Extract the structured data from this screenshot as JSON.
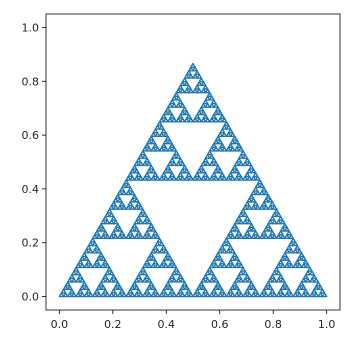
{
  "chart_data": {
    "type": "scatter",
    "title": "",
    "xlabel": "",
    "ylabel": "",
    "xlim": [
      -0.05,
      1.05
    ],
    "ylim": [
      -0.05,
      1.05
    ],
    "grid": false,
    "legend": "none",
    "series": [
      {
        "kind": "sierpinski-triangle",
        "vertices": [
          [
            0.0,
            0.0
          ],
          [
            1.0,
            0.0
          ],
          [
            0.5,
            0.866
          ]
        ],
        "depth": 6,
        "color": "#1f77b4"
      }
    ],
    "x_ticks": [
      {
        "value": 0.0,
        "label": "0.0"
      },
      {
        "value": 0.2,
        "label": "0.2"
      },
      {
        "value": 0.4,
        "label": "0.4"
      },
      {
        "value": 0.6,
        "label": "0.6"
      },
      {
        "value": 0.8,
        "label": "0.8"
      },
      {
        "value": 1.0,
        "label": "1.0"
      }
    ],
    "y_ticks": [
      {
        "value": 0.0,
        "label": "0.0"
      },
      {
        "value": 0.2,
        "label": "0.2"
      },
      {
        "value": 0.4,
        "label": "0.4"
      },
      {
        "value": 0.6,
        "label": "0.6"
      },
      {
        "value": 0.8,
        "label": "0.8"
      },
      {
        "value": 1.0,
        "label": "1.0"
      }
    ]
  }
}
